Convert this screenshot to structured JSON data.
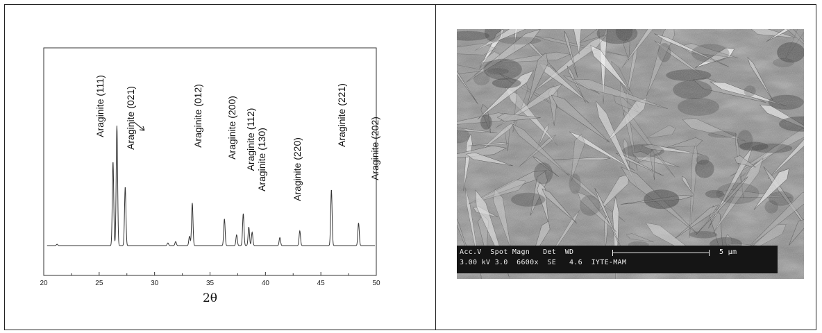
{
  "chart_data": {
    "type": "line",
    "xlabel": "2θ",
    "xlim": [
      20,
      50
    ],
    "xticks": [
      20,
      25,
      30,
      35,
      40,
      45,
      50
    ],
    "grid": false,
    "annotations": [
      {
        "text": "Araginite (111)",
        "x": 26.5
      },
      {
        "text": "Araginite (021)",
        "x": 27.3
      },
      {
        "text": "Araginite (012)",
        "x": 33.3
      },
      {
        "text": "Araginite (200)",
        "x": 36.3
      },
      {
        "text": "Araginite (112)",
        "x": 38.0
      },
      {
        "text": "Araginite (130)",
        "x": 38.7
      },
      {
        "text": "Araginite (220)",
        "x": 43.1
      },
      {
        "text": "Araginite (221)",
        "x": 46.0
      },
      {
        "text": "Araginite (202)",
        "x": 48.4
      }
    ],
    "peaks": [
      {
        "x": 21.2,
        "h": 0.01
      },
      {
        "x": 26.25,
        "h": 0.63
      },
      {
        "x": 26.6,
        "h": 0.9
      },
      {
        "x": 27.35,
        "h": 0.44
      },
      {
        "x": 31.2,
        "h": 0.02
      },
      {
        "x": 31.9,
        "h": 0.03
      },
      {
        "x": 33.15,
        "h": 0.07
      },
      {
        "x": 33.4,
        "h": 0.32
      },
      {
        "x": 36.3,
        "h": 0.2
      },
      {
        "x": 37.4,
        "h": 0.08
      },
      {
        "x": 38.0,
        "h": 0.24
      },
      {
        "x": 38.5,
        "h": 0.14
      },
      {
        "x": 38.8,
        "h": 0.1
      },
      {
        "x": 41.3,
        "h": 0.06
      },
      {
        "x": 43.1,
        "h": 0.11
      },
      {
        "x": 45.95,
        "h": 0.42
      },
      {
        "x": 48.4,
        "h": 0.17
      }
    ]
  },
  "sem": {
    "databar_row1": "Acc.V  Spot Magn   Det  WD",
    "databar_row2": "3.00 kV 3.0  6600x  SE   4.6  IYTE-MAM",
    "scale_label": "5 µm"
  }
}
